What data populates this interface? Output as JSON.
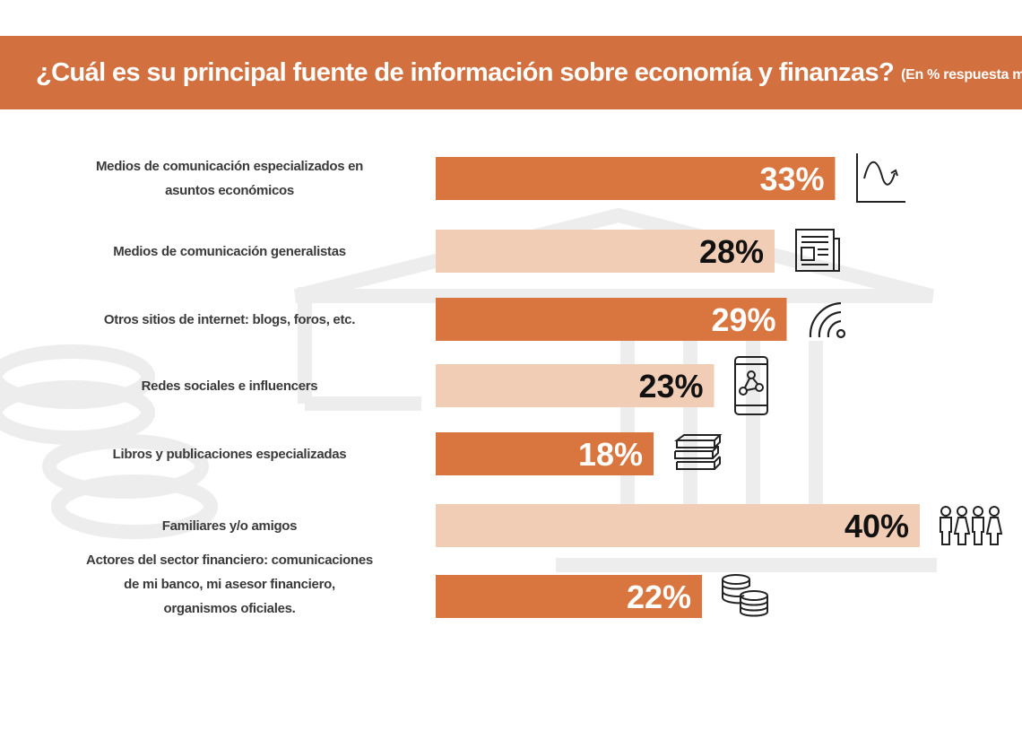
{
  "header": {
    "title": "¿Cuál es su principal fuente de información sobre economía y finanzas?",
    "subtitle": "(En % respuesta múltiple)"
  },
  "colors": {
    "header_bg": "#d2703f",
    "bar_dark": "#d9763f",
    "bar_light": "#f2cdb6",
    "value_on_dark": "#ffffff",
    "value_on_light": "#111111",
    "label_text": "#3a3a3a"
  },
  "chart_data": {
    "type": "bar",
    "orientation": "horizontal",
    "title": "¿Cuál es su principal fuente de información sobre economía y finanzas?",
    "subtitle": "(En % respuesta múltiple)",
    "categories": [
      "Medios de comunicación especializados en asuntos económicos",
      "Medios de comunicación generalistas",
      "Otros sitios de internet: blogs, foros, etc.",
      "Redes sociales e influencers",
      "Libros y publicaciones especializadas",
      "Familiares y/o amigos",
      "Actores del sector financiero: comunicaciones de mi banco, mi asesor financiero, organismos oficiales."
    ],
    "values": [
      33,
      28,
      29,
      23,
      18,
      40,
      22
    ],
    "value_labels": [
      "33%",
      "28%",
      "29%",
      "23%",
      "18%",
      "40%",
      "22%"
    ],
    "bar_shades": [
      "dark",
      "light",
      "dark",
      "light",
      "dark",
      "light",
      "dark"
    ],
    "icons": [
      "trend-chart-icon",
      "newspaper-icon",
      "wifi-signal-icon",
      "smartphone-network-icon",
      "books-icon",
      "family-icon",
      "coins-icon"
    ],
    "xlim": [
      0,
      40
    ],
    "grid": false,
    "legend": "none"
  }
}
